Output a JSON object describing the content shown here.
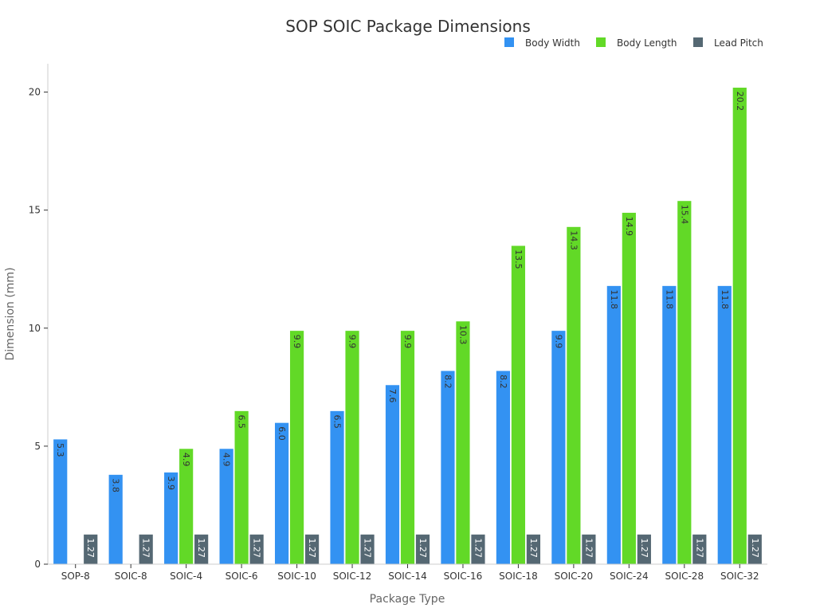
{
  "chart_data": {
    "type": "bar",
    "title": "SOP SOIC Package Dimensions",
    "xlabel": "Package Type",
    "ylabel": "Dimension (mm)",
    "ylim": [
      0,
      21.2
    ],
    "yticks": [
      0,
      5,
      10,
      15,
      20
    ],
    "grid": false,
    "legend_position": "top-right",
    "categories": [
      "SOP-8",
      "SOIC-8",
      "SOIC-4",
      "SOIC-6",
      "SOIC-10",
      "SOIC-12",
      "SOIC-14",
      "SOIC-16",
      "SOIC-18",
      "SOIC-20",
      "SOIC-24",
      "SOIC-28",
      "SOIC-32"
    ],
    "series": [
      {
        "name": "Body Width",
        "color": "#3392f2",
        "values": [
          5.3,
          3.8,
          3.9,
          4.9,
          6.0,
          6.5,
          7.6,
          8.2,
          8.2,
          9.9,
          11.8,
          11.8,
          11.8
        ],
        "labels": [
          "5.3",
          "3.8",
          "3.9",
          "4.9",
          "6.0",
          "6.5",
          "7.6",
          "8.2",
          "8.2",
          "9.9",
          "11.8",
          "11.8",
          "11.8"
        ]
      },
      {
        "name": "Body Length",
        "color": "#62d927",
        "values": [
          null,
          null,
          4.9,
          6.5,
          9.9,
          9.9,
          9.9,
          10.3,
          13.5,
          14.3,
          14.9,
          15.4,
          20.2
        ],
        "labels": [
          "",
          "",
          "4.9",
          "6.5",
          "9.9",
          "9.9",
          "9.9",
          "10.3",
          "13.5",
          "14.3",
          "14.9",
          "15.4",
          "20.2"
        ]
      },
      {
        "name": "Lead Pitch",
        "color": "#556873",
        "values": [
          1.27,
          1.27,
          1.27,
          1.27,
          1.27,
          1.27,
          1.27,
          1.27,
          1.27,
          1.27,
          1.27,
          1.27,
          1.27
        ],
        "labels": [
          "1.27",
          "1.27",
          "1.27",
          "1.27",
          "1.27",
          "1.27",
          "1.27",
          "1.27",
          "1.27",
          "1.27",
          "1.27",
          "1.27",
          "1.27"
        ]
      }
    ]
  }
}
